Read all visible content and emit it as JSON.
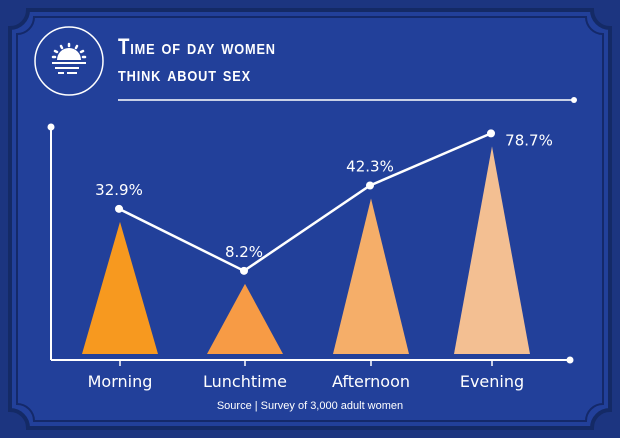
{
  "title": "Time of day women think about sex",
  "icon": "sunset-icon",
  "source": "Source  |  Survey of 3,000 adult women",
  "colors": {
    "background": "#22409a",
    "line": "#ffffff"
  },
  "chart_data": {
    "type": "bar",
    "title": "Time of day women think about sex",
    "categories": [
      "Morning",
      "Lunchtime",
      "Afternoon",
      "Evening"
    ],
    "values": [
      32.9,
      8.2,
      42.3,
      78.7
    ],
    "labels": [
      "32.9%",
      "8.2%",
      "42.3%",
      "78.7%"
    ],
    "unit": "%",
    "bar_shape": "triangle",
    "overlay": "line",
    "bar_colors": [
      "#f7991f",
      "#f79b45",
      "#f5ae69",
      "#f3bf92"
    ],
    "grid": false
  }
}
